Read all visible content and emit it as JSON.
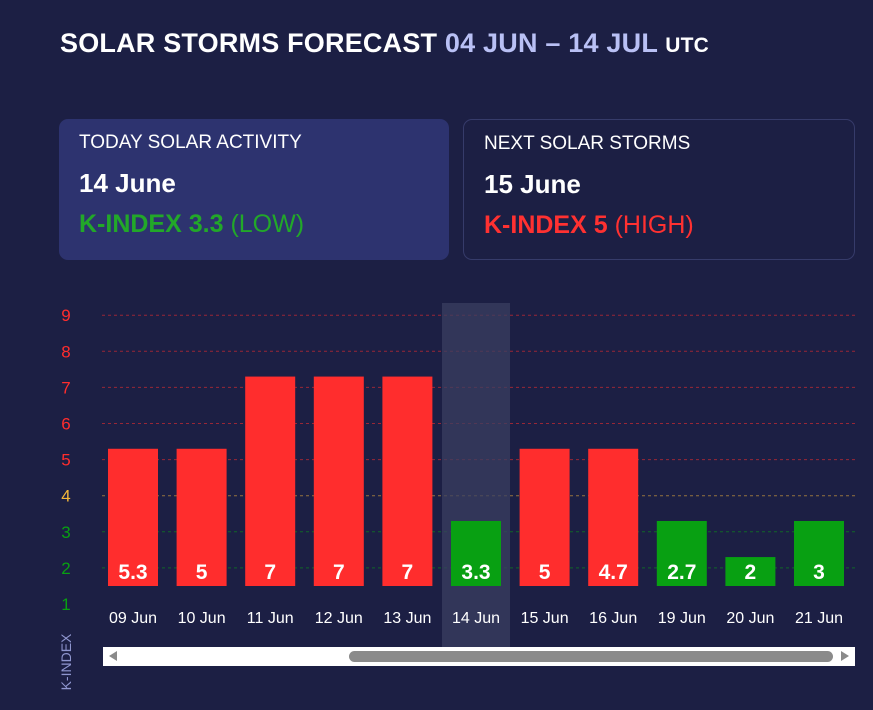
{
  "title": {
    "main": "SOLAR STORMS FORECAST",
    "range": "04 JUN – 14 JUL",
    "timezone": "UTC"
  },
  "today_card": {
    "label": "TODAY SOLAR ACTIVITY",
    "date": "14 June",
    "kindex": "K-INDEX 3.3",
    "level": "(LOW)"
  },
  "next_card": {
    "label": "NEXT SOLAR STORMS",
    "date": "15 June",
    "kindex": "K-INDEX 5",
    "level": "(HIGH)"
  },
  "colors": {
    "background": "#1c1f44",
    "high": "#ff2d2d",
    "low": "#08a012",
    "medium": "#f5b73a",
    "highlight": "#3a3f60"
  },
  "chart_data": {
    "type": "bar",
    "ylabel": "K-INDEX",
    "ylim": [
      1,
      9
    ],
    "yticks": [
      "1",
      "2",
      "3",
      "4",
      "5",
      "6",
      "7",
      "8",
      "9"
    ],
    "categories": [
      "09 Jun",
      "10 Jun",
      "11 Jun",
      "12 Jun",
      "13 Jun",
      "14 Jun",
      "15 Jun",
      "16 Jun",
      "19 Jun",
      "20 Jun",
      "21 Jun"
    ],
    "labels": [
      "5.3",
      "5",
      "7",
      "7",
      "7",
      "3.3",
      "5",
      "4.7",
      "2.7",
      "2",
      "3"
    ],
    "values": [
      5.3,
      5,
      7,
      7,
      7,
      3.3,
      5,
      4.7,
      2.7,
      2,
      3
    ],
    "bar_levels": [
      5.3,
      5.3,
      7.3,
      7.3,
      7.3,
      3.3,
      5.3,
      5.3,
      3.3,
      2.3,
      3.3
    ],
    "status": [
      "high",
      "high",
      "high",
      "high",
      "high",
      "low",
      "high",
      "high",
      "low",
      "low",
      "low"
    ],
    "highlighted": "14 Jun"
  }
}
